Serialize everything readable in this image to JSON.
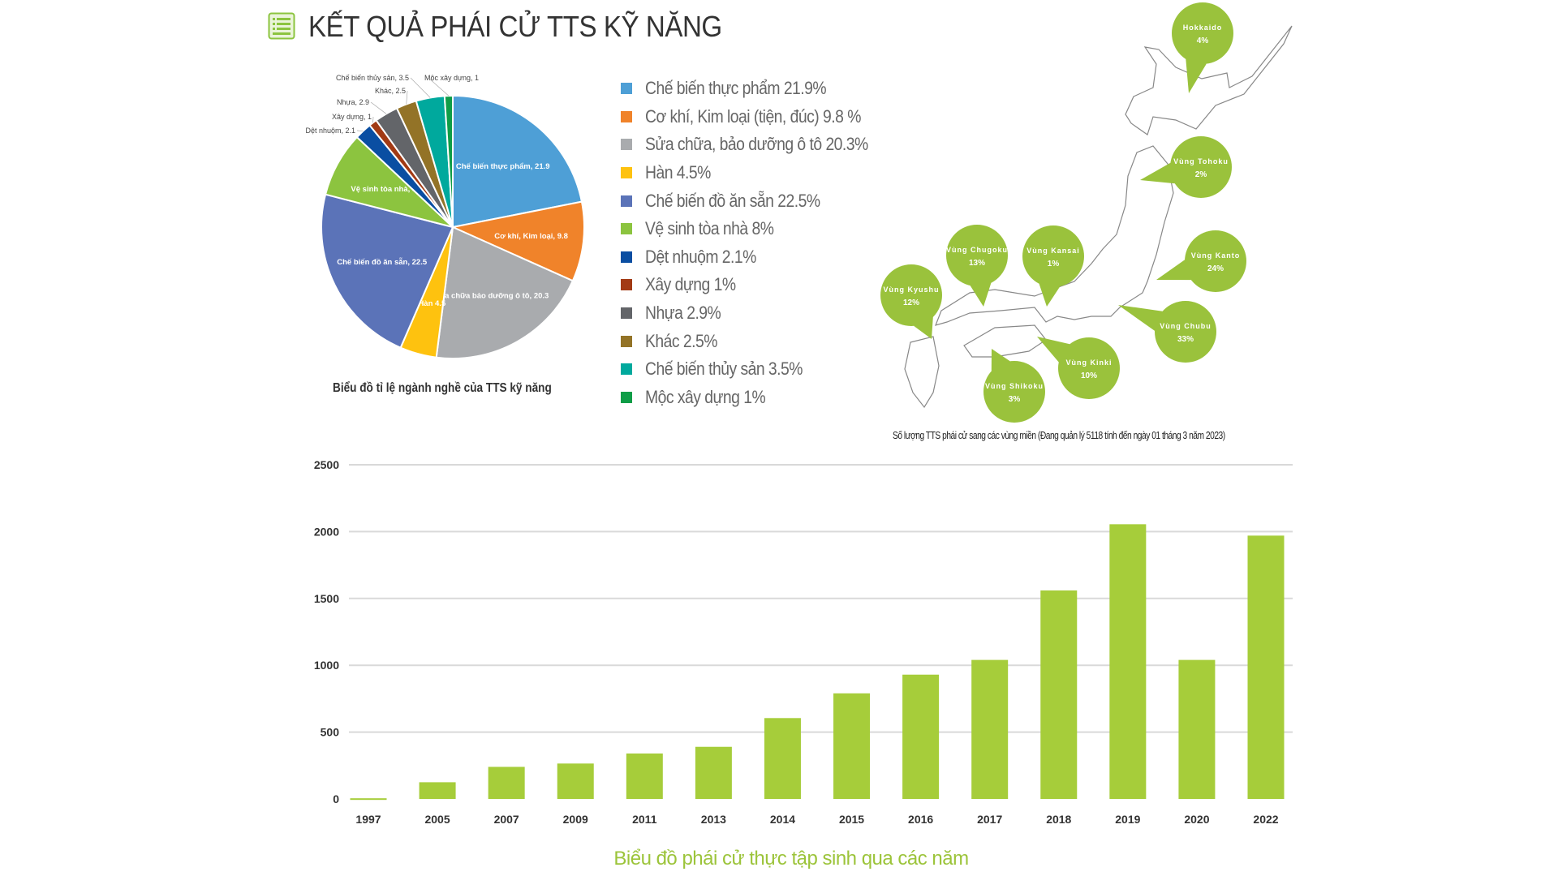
{
  "header": {
    "title": "KẾT QUẢ PHÁI CỬ TTS KỸ NĂNG",
    "icon": "list-icon",
    "accent": "#8cc43f"
  },
  "pie": {
    "caption": "Biểu đồ tỉ lệ ngành nghề của TTS kỹ năng",
    "legend": [
      "Chế biến thực phẩm 21.9%",
      "Cơ khí, Kim loại (tiện, đúc) 9.8 %",
      "Sửa chữa, bảo dưỡng ô tô 20.3%",
      "Hàn 4.5%",
      "Chế biến đồ ăn sẵn 22.5%",
      "Vệ sinh tòa nhà 8%",
      "Dệt nhuộm 2.1%",
      "Xây dựng 1%",
      "Nhựa 2.9%",
      "Khác 2.5%",
      "Chế biến thủy sản 3.5%",
      "Mộc xây dựng 1%"
    ]
  },
  "map": {
    "caption": "Số lượng TTS phái cử sang các vùng miền (Đang quản lý 5118 tính đến ngày 01 tháng 3 năm 2023)",
    "bubble_color": "#9ac23c",
    "regions": [
      {
        "name": "Hokkaido",
        "value": "4%"
      },
      {
        "name": "Vùng Tohoku",
        "value": "2%"
      },
      {
        "name": "Vùng Kanto",
        "value": "24%"
      },
      {
        "name": "Vùng Chubu",
        "value": "33%"
      },
      {
        "name": "Vùng Kinki",
        "value": "10%"
      },
      {
        "name": "Vùng Shikoku",
        "value": "3%"
      },
      {
        "name": "Vùng Kyushu",
        "value": "12%"
      },
      {
        "name": "Vùng Chugoku",
        "value": "13%"
      },
      {
        "name": "Vùng Kansai",
        "value": "1%"
      }
    ]
  },
  "chart_data": [
    {
      "type": "pie",
      "title": "Biểu đồ tỉ lệ ngành nghề của TTS kỹ năng",
      "start": "top",
      "direction": "clockwise",
      "slices": [
        {
          "label": "Chế biến thực phẩm, 21.9",
          "value": 21.9,
          "color": "#4e9fd6",
          "label_pos": "inside"
        },
        {
          "label": "Cơ khí, Kim loại, 9.8",
          "value": 9.8,
          "color": "#f0832a",
          "label_pos": "inside"
        },
        {
          "label": "Sửa chữa bảo dưỡng ô tô, 20.3",
          "value": 20.3,
          "color": "#a9abae",
          "label_pos": "inside"
        },
        {
          "label": "Hàn 4.5",
          "value": 4.5,
          "color": "#fec20f",
          "label_pos": "inside"
        },
        {
          "label": "Chế biến đồ ăn sẵn, 22.5",
          "value": 22.5,
          "color": "#5b73b8",
          "label_pos": "inside"
        },
        {
          "label": "Vệ sinh tòa nhà, 8",
          "value": 8,
          "color": "#8cc43f",
          "label_pos": "inside"
        },
        {
          "label": "Dệt nhuộm, 2.1",
          "value": 2.1,
          "color": "#0a4ea2",
          "label_pos": "outside"
        },
        {
          "label": "Xây dựng, 1",
          "value": 1,
          "color": "#a23a14",
          "label_pos": "outside"
        },
        {
          "label": "Nhựa, 2.9",
          "value": 2.9,
          "color": "#636569",
          "label_pos": "outside"
        },
        {
          "label": "Khác, 2.5",
          "value": 2.5,
          "color": "#937327",
          "label_pos": "outside"
        },
        {
          "label": "Chế biến thủy sản, 3.5",
          "value": 3.5,
          "color": "#00a99d",
          "label_pos": "outside"
        },
        {
          "label": "Mộc xây dựng, 1",
          "value": 1,
          "color": "#0f9d47",
          "label_pos": "outside"
        }
      ]
    },
    {
      "type": "bar",
      "title": "Biểu đồ phái cử thực tập sinh qua các năm",
      "categories": [
        "1997",
        "2005",
        "2007",
        "2009",
        "2011",
        "2013",
        "2014",
        "2015",
        "2016",
        "2017",
        "2018",
        "2019",
        "2020",
        "2022"
      ],
      "values": [
        5,
        125,
        240,
        265,
        340,
        390,
        605,
        790,
        930,
        1040,
        1560,
        2055,
        1040,
        1970
      ],
      "ylim": [
        0,
        2500
      ],
      "yticks": [
        "0",
        "500",
        "1000",
        "1500",
        "2000",
        "2500"
      ],
      "grid": true,
      "color": "#a6cd3a"
    }
  ]
}
